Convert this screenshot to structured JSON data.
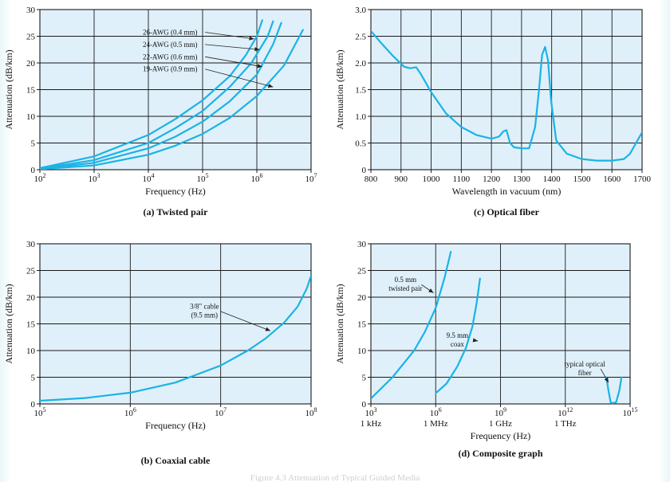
{
  "colors": {
    "plot_bg": "#dff0fa",
    "grid": "#1a1a1a",
    "curve": "#1ab3e6",
    "text": "#111111"
  },
  "footer_text": "Figure 4.3  Attenuation of Typical Guided Media",
  "chart_data": [
    {
      "id": "a",
      "type": "line",
      "caption": "(a) Twisted pair",
      "xlabel": "Frequency (Hz)",
      "ylabel": "Attenuation (dB/km)",
      "xscale": "log",
      "xlim": [
        2,
        7
      ],
      "ylim": [
        0,
        30
      ],
      "xticks": [
        2,
        3,
        4,
        5,
        6,
        7
      ],
      "xtick_labels": [
        "10^2",
        "10^3",
        "10^4",
        "10^5",
        "10^6",
        "10^7"
      ],
      "yticks": [
        0,
        5,
        10,
        15,
        20,
        25,
        30
      ],
      "xgrid": [
        3,
        4,
        5,
        6
      ],
      "ygrid": [
        5,
        10,
        15,
        20,
        25
      ],
      "series": [
        {
          "name": "26-AWG (0.4 mm)",
          "x": [
            2,
            3,
            4,
            4.5,
            5,
            5.5,
            5.8,
            6,
            6.1
          ],
          "y": [
            0.3,
            2.5,
            6.5,
            9.5,
            13,
            17.5,
            21.5,
            25,
            28
          ]
        },
        {
          "name": "24-AWG (0.5 mm)",
          "x": [
            2,
            3,
            4,
            4.5,
            5,
            5.5,
            5.9,
            6.2,
            6.3
          ],
          "y": [
            0.2,
            1.8,
            5,
            7.8,
            11,
            15.5,
            20,
            25,
            27.8
          ]
        },
        {
          "name": "22-AWG (0.6 mm)",
          "x": [
            2,
            3,
            4,
            4.5,
            5,
            5.5,
            6,
            6.3,
            6.45
          ],
          "y": [
            0.15,
            1.3,
            4,
            6.2,
            9,
            12.8,
            17.8,
            23.5,
            27.5
          ]
        },
        {
          "name": "19-AWG (0.9 mm)",
          "x": [
            2,
            3,
            4,
            4.5,
            5,
            5.5,
            6,
            6.5,
            6.85
          ],
          "y": [
            0.1,
            0.8,
            2.8,
            4.5,
            6.7,
            9.7,
            13.8,
            19.5,
            26.2
          ]
        }
      ],
      "annotations": [
        {
          "label": "26-AWG (0.4 mm)",
          "x": 4.4,
          "y": 25.3,
          "ax": 5.95,
          "ay": 24.5
        },
        {
          "label": "24-AWG (0.5 mm)",
          "x": 4.4,
          "y": 23.0,
          "ax": 6.05,
          "ay": 22.5
        },
        {
          "label": "22-AWG (0.6 mm)",
          "x": 4.4,
          "y": 20.7,
          "ax": 6.1,
          "ay": 19.3
        },
        {
          "label": "19-AWG (0.9 mm)",
          "x": 4.4,
          "y": 18.4,
          "ax": 6.3,
          "ay": 15.5
        }
      ]
    },
    {
      "id": "c",
      "type": "line",
      "caption": "(c) Optical fiber",
      "xlabel": "Wavelength in vacuum (nm)",
      "ylabel": "Attenuation (dB/km)",
      "xscale": "linear",
      "xlim": [
        800,
        1700
      ],
      "ylim": [
        0,
        3
      ],
      "xticks": [
        800,
        900,
        1000,
        1100,
        1200,
        1300,
        1400,
        1500,
        1600,
        1700
      ],
      "xtick_labels": [
        "800",
        "900",
        "1000",
        "1100",
        "1200",
        "1300",
        "1400",
        "1500",
        "1600",
        "1700"
      ],
      "yticks": [
        0,
        0.5,
        1.0,
        1.5,
        2.0,
        2.5,
        3.0
      ],
      "ytick_labels": [
        "0",
        "0.5",
        "1.0",
        "1.5",
        "2.0",
        "2.5",
        "3.0"
      ],
      "xgrid": [
        900,
        1000,
        1100,
        1200,
        1300,
        1400,
        1500,
        1600
      ],
      "ygrid": [
        0.5,
        1.0,
        1.5,
        2.0,
        2.5
      ],
      "series": [
        {
          "name": "optical fiber",
          "x": [
            800,
            830,
            870,
            910,
            930,
            950,
            965,
            1000,
            1050,
            1100,
            1150,
            1200,
            1225,
            1240,
            1250,
            1262,
            1275,
            1300,
            1325,
            1345,
            1358,
            1368,
            1378,
            1388,
            1398,
            1415,
            1450,
            1500,
            1550,
            1600,
            1640,
            1660,
            1680,
            1700
          ],
          "y": [
            2.6,
            2.4,
            2.15,
            1.93,
            1.9,
            1.92,
            1.8,
            1.45,
            1.05,
            0.8,
            0.65,
            0.58,
            0.62,
            0.72,
            0.74,
            0.5,
            0.42,
            0.4,
            0.4,
            0.8,
            1.5,
            2.15,
            2.3,
            2.05,
            1.3,
            0.55,
            0.3,
            0.2,
            0.17,
            0.17,
            0.2,
            0.3,
            0.5,
            0.7
          ]
        }
      ],
      "annotations": []
    },
    {
      "id": "b",
      "type": "line",
      "caption": "(b) Coaxial cable",
      "xlabel": "Frequency (Hz)",
      "ylabel": "Attenuation (dB/km)",
      "xscale": "log",
      "xlim": [
        5,
        8
      ],
      "ylim": [
        0,
        30
      ],
      "xticks": [
        5,
        6,
        7,
        8
      ],
      "xtick_labels": [
        "10^5",
        "10^6",
        "10^7",
        "10^8"
      ],
      "yticks": [
        0,
        5,
        10,
        15,
        20,
        25,
        30
      ],
      "xgrid": [
        6,
        7
      ],
      "ygrid": [
        5,
        10,
        15,
        20,
        25
      ],
      "series": [
        {
          "name": "3/8\" cable (9.5 mm)",
          "x": [
            5,
            5.5,
            6,
            6.5,
            7,
            7.3,
            7.5,
            7.7,
            7.85,
            7.95,
            8
          ],
          "y": [
            0.6,
            1.1,
            2.1,
            4.0,
            7.2,
            10.0,
            12.3,
            15.2,
            18.2,
            21.5,
            24
          ]
        }
      ],
      "annotations": [
        {
          "label": "3/8\" cable",
          "label2": "(9.5 mm)",
          "x": 6.82,
          "y": 17.8,
          "ax": 7.55,
          "ay": 13.7
        }
      ]
    },
    {
      "id": "d",
      "type": "line",
      "caption": "(d) Composite graph",
      "xlabel": "Frequency (Hz)",
      "ylabel": "Attenuation (dB/km)",
      "xscale": "log",
      "xlim": [
        3,
        15
      ],
      "ylim": [
        0,
        30
      ],
      "xticks": [
        3,
        6,
        9,
        12,
        15
      ],
      "xtick_labels": [
        "10^3",
        "10^6",
        "10^9",
        "10^12",
        "10^15"
      ],
      "xtick_sublabels": [
        "1 kHz",
        "1 MHz",
        "1 GHz",
        "1 THz",
        ""
      ],
      "yticks": [
        0,
        5,
        10,
        15,
        20,
        25,
        30
      ],
      "xgrid": [
        6,
        9,
        12
      ],
      "ygrid": [
        5,
        10,
        15,
        20,
        25
      ],
      "series": [
        {
          "name": "0.5 mm twisted pair",
          "x": [
            3,
            4,
            5,
            5.5,
            6,
            6.4,
            6.7
          ],
          "y": [
            1,
            5,
            10,
            13.5,
            18,
            23.5,
            28.5
          ]
        },
        {
          "name": "9.5 mm coax",
          "x": [
            6,
            6.5,
            7,
            7.4,
            7.7,
            7.9,
            8.05
          ],
          "y": [
            2,
            3.8,
            7,
            10.5,
            14.5,
            19,
            23.5
          ]
        },
        {
          "name": "typical optical fiber",
          "x": [
            13.9,
            14.0,
            14.1,
            14.2,
            14.35,
            14.5,
            14.6
          ],
          "y": [
            5,
            2.5,
            0.3,
            0.15,
            0.3,
            2.5,
            5
          ]
        }
      ],
      "annotations": [
        {
          "label": "0.5 mm",
          "label2": "twisted pair",
          "x": 4.6,
          "y": 22.8,
          "ax": 5.9,
          "ay": 20.8
        },
        {
          "label": "9.5 mm",
          "label2": "coax",
          "x": 7.0,
          "y": 12.4,
          "ax": 7.95,
          "ay": 11.8
        },
        {
          "label": "typical optical",
          "label2": "fiber",
          "x": 12.9,
          "y": 7.0,
          "ax": 14.0,
          "ay": 4.0
        }
      ]
    }
  ]
}
